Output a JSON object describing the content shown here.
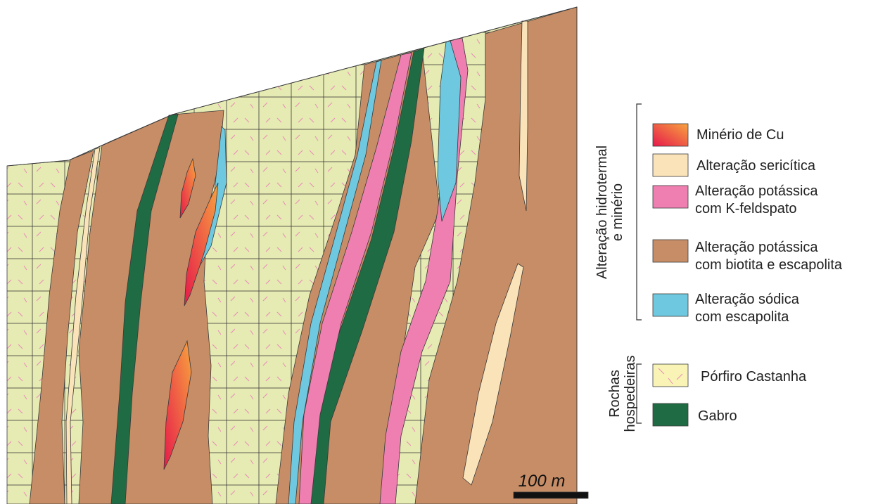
{
  "legend": {
    "hydrothermal": {
      "title": [
        "Alteração hidrotermal",
        "e minério"
      ],
      "items": [
        {
          "label": [
            "Minério de Cu"
          ]
        },
        {
          "label": [
            "Alteração sericítica"
          ]
        },
        {
          "label": [
            "Alteração potássica",
            "com K-feldspato"
          ]
        },
        {
          "label": [
            "Alteração potássica",
            "com biotita e escapolita"
          ]
        },
        {
          "label": [
            "Alteração sódica",
            "com escapolita"
          ]
        }
      ]
    },
    "host": {
      "title": [
        "Rochas",
        "hospedeiras"
      ],
      "items": [
        {
          "label": [
            "Pórfiro Castanha"
          ]
        },
        {
          "label": [
            "Gabro"
          ]
        }
      ]
    }
  },
  "scale_bar": "100 m"
}
